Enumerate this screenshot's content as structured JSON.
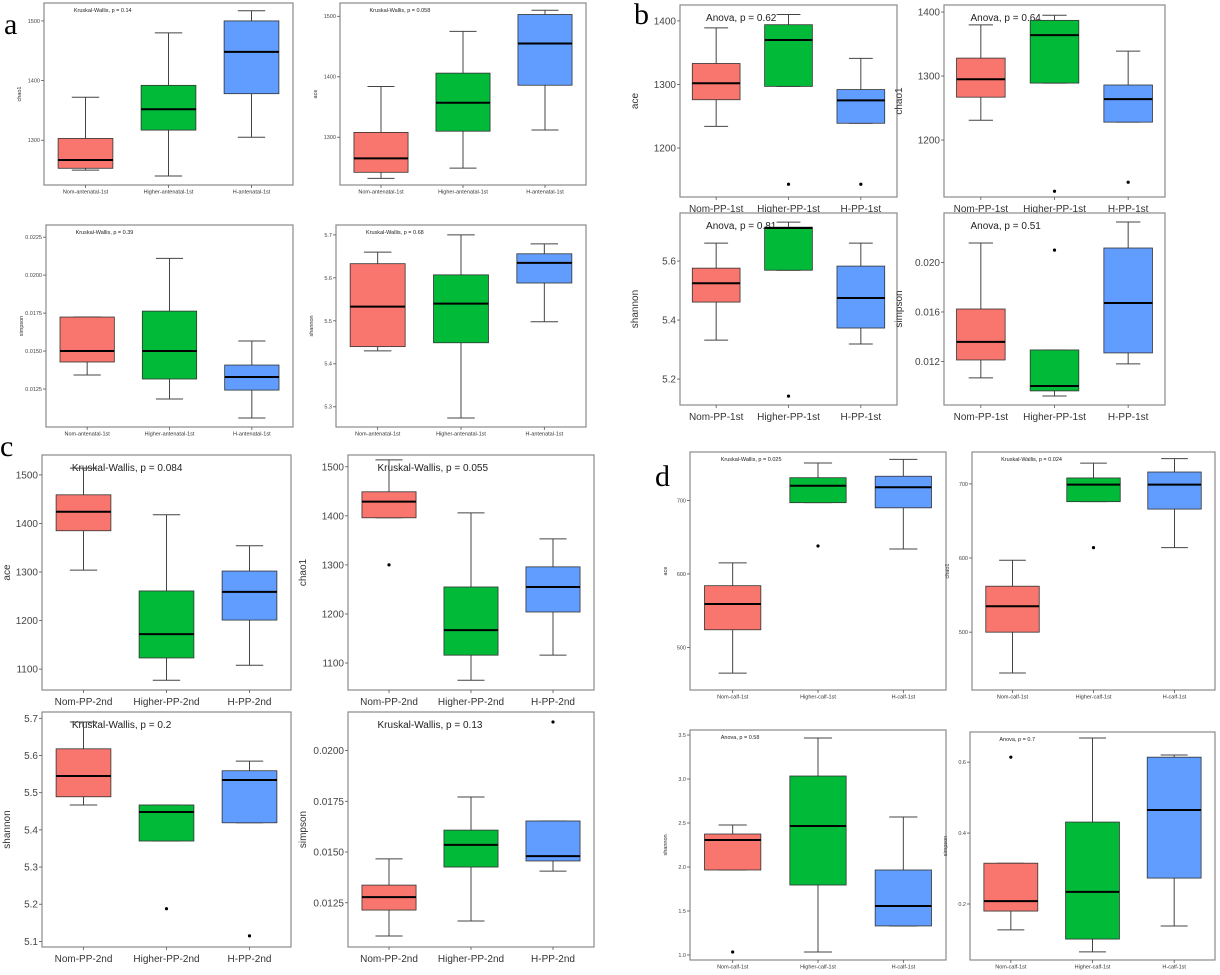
{
  "panel_letters": {
    "a": "a",
    "b": "b",
    "c": "c",
    "d": "d"
  },
  "colors": {
    "group1": "#F8766D",
    "group2": "#00BA38",
    "group3": "#619CFF"
  },
  "chart_data": [
    {
      "panel": "a",
      "type": "box",
      "title": "Kruskal-Wallis, p = 0.14",
      "ylabel": "chao1",
      "categories": [
        "Nom-antenatal-1st",
        "Higher-antenatal-1st",
        "H-antenatal-1st"
      ],
      "yticks": [
        "1300",
        "1400",
        "1500"
      ],
      "ylim": [
        1225,
        1530
      ],
      "grid": false,
      "boxes": [
        {
          "min": 1250,
          "q1": 1253,
          "median": 1267,
          "q3": 1303,
          "max": 1372,
          "outliers": []
        },
        {
          "min": 1240,
          "q1": 1317,
          "median": 1352,
          "q3": 1392,
          "max": 1480,
          "outliers": []
        },
        {
          "min": 1305,
          "q1": 1378,
          "median": 1448,
          "q3": 1500,
          "max": 1517,
          "outliers": []
        }
      ]
    },
    {
      "panel": "a",
      "type": "box",
      "title": "Kruskal-Wallis, p = 0.058",
      "ylabel": "ace",
      "categories": [
        "Nom-antenatal-1st",
        "Higher-antenatal-1st",
        "H-antenatal-1st"
      ],
      "yticks": [
        "1300",
        "1400",
        "1500"
      ],
      "ylim": [
        1221,
        1522
      ],
      "grid": false,
      "boxes": [
        {
          "min": 1232,
          "q1": 1242,
          "median": 1265,
          "q3": 1308,
          "max": 1384,
          "outliers": []
        },
        {
          "min": 1249,
          "q1": 1310,
          "median": 1357,
          "q3": 1406,
          "max": 1475,
          "outliers": []
        },
        {
          "min": 1312,
          "q1": 1386,
          "median": 1455,
          "q3": 1503,
          "max": 1510,
          "outliers": []
        }
      ]
    },
    {
      "panel": "a",
      "type": "box",
      "title": "Kruskal-Wallis, p = 0.39",
      "ylabel": "simpson",
      "categories": [
        "Nom-antenatal-1st",
        "Higher-antenatal-1st",
        "H-antenatal-1st"
      ],
      "yticks": [
        "0.0125",
        "0.0150",
        "0.0175",
        "0.0200",
        "0.0225"
      ],
      "ylim": [
        0.01,
        0.0233
      ],
      "grid": false,
      "boxes": [
        {
          "min": 0.01342,
          "q1": 0.01428,
          "median": 0.015,
          "q3": 0.01724,
          "max": 0.01724,
          "outliers": []
        },
        {
          "min": 0.01184,
          "q1": 0.01316,
          "median": 0.015,
          "q3": 0.01763,
          "max": 0.0211,
          "outliers": []
        },
        {
          "min": 0.01059,
          "q1": 0.01243,
          "median": 0.01329,
          "q3": 0.01408,
          "max": 0.01566,
          "outliers": []
        }
      ]
    },
    {
      "panel": "a",
      "type": "box",
      "title": "Kruskal-Wallis, p = 0.68",
      "ylabel": "shannon",
      "categories": [
        "Nom-antenatal-1st",
        "Higher-antenatal-1st",
        "H-antenatal-1st"
      ],
      "yticks": [
        "5.3",
        "5.4",
        "5.5",
        "5.6",
        "5.7"
      ],
      "ylim": [
        5.253,
        5.723
      ],
      "grid": false,
      "boxes": [
        {
          "min": 5.43,
          "q1": 5.44,
          "median": 5.533,
          "q3": 5.633,
          "max": 5.66,
          "outliers": []
        },
        {
          "min": 5.274,
          "q1": 5.449,
          "median": 5.54,
          "q3": 5.607,
          "max": 5.7,
          "outliers": []
        },
        {
          "min": 5.498,
          "q1": 5.588,
          "median": 5.635,
          "q3": 5.656,
          "max": 5.679,
          "outliers": []
        }
      ]
    },
    {
      "panel": "b",
      "type": "box",
      "title": "Anova, p = 0.62",
      "ylabel": "ace",
      "categories": [
        "Nom-PP-1st",
        "Higher-PP-1st",
        "H-PP-1st"
      ],
      "yticks": [
        "1200",
        "1300",
        "1400"
      ],
      "ylim": [
        1123,
        1425
      ],
      "grid": false,
      "boxes": [
        {
          "min": 1234,
          "q1": 1276,
          "median": 1302,
          "q3": 1333,
          "max": 1389,
          "outliers": []
        },
        {
          "min": 1297,
          "q1": 1297,
          "median": 1370,
          "q3": 1394,
          "max": 1410,
          "outliers": [
            1143
          ]
        },
        {
          "min": 1239,
          "q1": 1239,
          "median": 1275,
          "q3": 1292,
          "max": 1341,
          "outliers": [
            1143
          ]
        }
      ]
    },
    {
      "panel": "b",
      "type": "box",
      "title": "Anova, p = 0.64",
      "ylabel": "chao1",
      "categories": [
        "Nom-PP-1st",
        "Higher-PP-1st",
        "H-PP-1st"
      ],
      "yticks": [
        "1200",
        "1300",
        "1400"
      ],
      "ylim": [
        1111,
        1411
      ],
      "grid": false,
      "boxes": [
        {
          "min": 1231,
          "q1": 1267,
          "median": 1295,
          "q3": 1328,
          "max": 1380,
          "outliers": []
        },
        {
          "min": 1289,
          "q1": 1289,
          "median": 1364,
          "q3": 1387,
          "max": 1395,
          "outliers": [
            1120
          ]
        },
        {
          "min": 1228,
          "q1": 1228,
          "median": 1264,
          "q3": 1286,
          "max": 1339,
          "outliers": [
            1134
          ]
        }
      ]
    },
    {
      "panel": "b",
      "type": "box",
      "title": "Anova, p = 0.81",
      "ylabel": "shannon",
      "categories": [
        "Nom-PP-1st",
        "Higher-PP-1st",
        "H-PP-1st"
      ],
      "yticks": [
        "5.2",
        "5.4",
        "5.6"
      ],
      "ylim": [
        5.112,
        5.763
      ],
      "grid": false,
      "boxes": [
        {
          "min": 5.332,
          "q1": 5.461,
          "median": 5.525,
          "q3": 5.576,
          "max": 5.661,
          "outliers": []
        },
        {
          "min": 5.569,
          "q1": 5.569,
          "median": 5.712,
          "q3": 5.715,
          "max": 5.732,
          "outliers": [
            5.142
          ]
        },
        {
          "min": 5.319,
          "q1": 5.373,
          "median": 5.475,
          "q3": 5.583,
          "max": 5.661,
          "outliers": []
        }
      ]
    },
    {
      "panel": "b",
      "type": "box",
      "title": "Anova, p = 0.51",
      "ylabel": "simpson",
      "categories": [
        "Nom-PP-1st",
        "Higher-PP-1st",
        "H-PP-1st"
      ],
      "yticks": [
        "0.012",
        "0.016",
        "0.020"
      ],
      "ylim": [
        0.00848,
        0.024
      ],
      "grid": false,
      "boxes": [
        {
          "min": 0.01067,
          "q1": 0.01212,
          "median": 0.01358,
          "q3": 0.01624,
          "max": 0.02158,
          "outliers": []
        },
        {
          "min": 0.00921,
          "q1": 0.00962,
          "median": 0.01002,
          "q3": 0.01293,
          "max": 0.01293,
          "outliers": [
            0.021
          ]
        },
        {
          "min": 0.0118,
          "q1": 0.01269,
          "median": 0.01673,
          "q3": 0.02117,
          "max": 0.02327,
          "outliers": []
        }
      ]
    },
    {
      "panel": "c",
      "type": "box",
      "title": "Kruskal-Wallis, p = 0.084",
      "ylabel": "ace",
      "categories": [
        "Nom-PP-2nd",
        "Higher-PP-2nd",
        "H-PP-2nd"
      ],
      "yticks": [
        "1100",
        "1200",
        "1300",
        "1400",
        "1500"
      ],
      "ylim": [
        1057,
        1541
      ],
      "grid": false,
      "boxes": [
        {
          "min": 1304,
          "q1": 1385,
          "median": 1424,
          "q3": 1459,
          "max": 1514,
          "outliers": []
        },
        {
          "min": 1077,
          "q1": 1123,
          "median": 1172,
          "q3": 1261,
          "max": 1418,
          "outliers": []
        },
        {
          "min": 1108,
          "q1": 1201,
          "median": 1259,
          "q3": 1302,
          "max": 1354,
          "outliers": []
        }
      ]
    },
    {
      "panel": "c",
      "type": "box",
      "title": "Kruskal-Wallis, p = 0.055",
      "ylabel": "chao1",
      "categories": [
        "Nom-PP-2nd",
        "Higher-PP-2nd",
        "H-PP-2nd"
      ],
      "yticks": [
        "1100",
        "1200",
        "1300",
        "1400",
        "1500"
      ],
      "ylim": [
        1045,
        1524
      ],
      "grid": false,
      "boxes": [
        {
          "min": 1396,
          "q1": 1396,
          "median": 1429,
          "q3": 1449,
          "max": 1514,
          "outliers": [
            1300
          ]
        },
        {
          "min": 1065,
          "q1": 1116,
          "median": 1167,
          "q3": 1255,
          "max": 1406,
          "outliers": []
        },
        {
          "min": 1116,
          "q1": 1204,
          "median": 1255,
          "q3": 1296,
          "max": 1353,
          "outliers": []
        }
      ]
    },
    {
      "panel": "c",
      "type": "box",
      "title": "Kruskal-Wallis, p = 0.2",
      "ylabel": "shannon",
      "categories": [
        "Nom-PP-2nd",
        "Higher-PP-2nd",
        "H-PP-2nd"
      ],
      "yticks": [
        "5.1",
        "5.2",
        "5.3",
        "5.4",
        "5.5",
        "5.6",
        "5.7"
      ],
      "ylim": [
        5.085,
        5.717
      ],
      "grid": false,
      "boxes": [
        {
          "min": 5.467,
          "q1": 5.489,
          "median": 5.545,
          "q3": 5.618,
          "max": 5.69,
          "outliers": []
        },
        {
          "min": 5.37,
          "q1": 5.37,
          "median": 5.448,
          "q3": 5.467,
          "max": 5.467,
          "outliers": [
            5.188
          ]
        },
        {
          "min": 5.419,
          "q1": 5.419,
          "median": 5.534,
          "q3": 5.559,
          "max": 5.585,
          "outliers": [
            5.115
          ]
        }
      ]
    },
    {
      "panel": "c",
      "type": "box",
      "title": "Kruskal-Wallis, p = 0.13",
      "ylabel": "simpson",
      "categories": [
        "Nom-PP-2nd",
        "Higher-PP-2nd",
        "H-PP-2nd"
      ],
      "yticks": [
        "0.0125",
        "0.0150",
        "0.0175",
        "0.0200"
      ],
      "ylim": [
        0.01032,
        0.0219
      ],
      "grid": false,
      "boxes": [
        {
          "min": 0.01086,
          "q1": 0.01214,
          "median": 0.01278,
          "q3": 0.01337,
          "max": 0.01466,
          "outliers": []
        },
        {
          "min": 0.0116,
          "q1": 0.01426,
          "median": 0.01535,
          "q3": 0.01608,
          "max": 0.01771,
          "outliers": []
        },
        {
          "min": 0.01406,
          "q1": 0.01456,
          "median": 0.0148,
          "q3": 0.01653,
          "max": 0.01653,
          "outliers": [
            0.02141
          ]
        }
      ]
    },
    {
      "panel": "d",
      "type": "box",
      "title": "Kruskal-Wallis, p = 0.025",
      "ylabel": "ace",
      "categories": [
        "Nom-calf-1st",
        "Higher-calf-1st",
        "H-calf-1st"
      ],
      "yticks": [
        "500",
        "600",
        "700"
      ],
      "ylim": [
        442,
        766
      ],
      "grid": false,
      "boxes": [
        {
          "min": 465,
          "q1": 524,
          "median": 559,
          "q3": 584,
          "max": 615,
          "outliers": []
        },
        {
          "min": 697,
          "q1": 697,
          "median": 720,
          "q3": 731,
          "max": 751,
          "outliers": [
            638
          ]
        },
        {
          "min": 634,
          "q1": 690,
          "median": 718,
          "q3": 733,
          "max": 756,
          "outliers": []
        }
      ]
    },
    {
      "panel": "d",
      "type": "box",
      "title": "Kruskal-Wallis, p = 0.024",
      "ylabel": "chao1",
      "categories": [
        "Nom-calf-1st",
        "Higher-calf-1st",
        "H-calf-1st"
      ],
      "yticks": [
        "500",
        "600",
        "700"
      ],
      "ylim": [
        422,
        743
      ],
      "grid": false,
      "boxes": [
        {
          "min": 445,
          "q1": 500,
          "median": 535,
          "q3": 562,
          "max": 597,
          "outliers": []
        },
        {
          "min": 676,
          "q1": 676,
          "median": 699,
          "q3": 708,
          "max": 728,
          "outliers": [
            614
          ]
        },
        {
          "min": 614,
          "q1": 666,
          "median": 699,
          "q3": 716,
          "max": 734,
          "outliers": []
        }
      ]
    },
    {
      "panel": "d",
      "type": "box",
      "title": "Anova, p = 0.58",
      "ylabel": "shannon",
      "categories": [
        "Nom-calf-1st",
        "Higher-calf-1st",
        "H-calf-1st"
      ],
      "yticks": [
        "1.0",
        "1.5",
        "2.0",
        "2.5",
        "3.0",
        "3.5"
      ],
      "ylim": [
        0.943,
        3.557
      ],
      "grid": false,
      "boxes": [
        {
          "min": 1.966,
          "q1": 1.966,
          "median": 2.307,
          "q3": 2.375,
          "max": 2.477,
          "outliers": [
            1.034
          ]
        },
        {
          "min": 1.034,
          "q1": 1.795,
          "median": 2.466,
          "q3": 3.034,
          "max": 3.466,
          "outliers": []
        },
        {
          "min": 1.33,
          "q1": 1.33,
          "median": 1.557,
          "q3": 1.966,
          "max": 2.568,
          "outliers": []
        }
      ]
    },
    {
      "panel": "d",
      "type": "box",
      "title": "Anova, p = 0.7",
      "ylabel": "simpson",
      "categories": [
        "Nom-calf-1st",
        "Higher-calf-1st",
        "H-calf-1st"
      ],
      "yticks": [
        "0.2",
        "0.4",
        "0.6"
      ],
      "ylim": [
        0.042,
        0.685
      ],
      "grid": false,
      "boxes": [
        {
          "min": 0.127,
          "q1": 0.18,
          "median": 0.208,
          "q3": 0.315,
          "max": 0.315,
          "outliers": [
            0.614
          ]
        },
        {
          "min": 0.065,
          "q1": 0.101,
          "median": 0.234,
          "q3": 0.431,
          "max": 0.668,
          "outliers": []
        },
        {
          "min": 0.138,
          "q1": 0.273,
          "median": 0.465,
          "q3": 0.614,
          "max": 0.62,
          "outliers": []
        }
      ]
    }
  ]
}
